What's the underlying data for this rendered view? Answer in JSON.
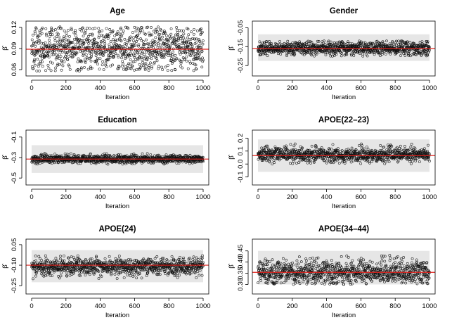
{
  "colors": {
    "reference_line": "#e0201b",
    "band": "#e6e6e6",
    "points": "#111111"
  },
  "chart_data": [
    {
      "type": "scatter",
      "title": "Age",
      "xlabel": "Iteration",
      "ylabel": "β̂",
      "xlim": [
        0,
        1000
      ],
      "ylim": [
        0.055,
        0.125
      ],
      "xticks": [
        0,
        200,
        400,
        600,
        800,
        1000
      ],
      "xtick_labels": [
        "0",
        "200",
        "400",
        "600",
        "800",
        "1000"
      ],
      "yticks": [
        0.06,
        0.09,
        0.12
      ],
      "ytick_labels": [
        "0.06",
        "0.09",
        "0.12"
      ],
      "reference_line": 0.089,
      "band": null,
      "samples": {
        "n": 1000,
        "center": 0.09,
        "spread": 0.016,
        "min": 0.058,
        "max": 0.121
      }
    },
    {
      "type": "scatter",
      "title": "Gender",
      "xlabel": "Iteration",
      "ylabel": "β̂",
      "xlim": [
        0,
        1000
      ],
      "ylim": [
        -0.29,
        -0.03
      ],
      "xticks": [
        0,
        200,
        400,
        600,
        800,
        1000
      ],
      "xtick_labels": [
        "0",
        "200",
        "400",
        "600",
        "800",
        "1000"
      ],
      "yticks": [
        -0.05,
        -0.15,
        -0.25
      ],
      "ytick_labels": [
        "-0.05",
        "-0.15",
        "-0.25"
      ],
      "reference_line": -0.16,
      "band": [
        -0.225,
        -0.085
      ],
      "samples": {
        "n": 1000,
        "center": -0.158,
        "spread": 0.018,
        "min": -0.2,
        "max": -0.12
      }
    },
    {
      "type": "scatter",
      "title": "Education",
      "xlabel": "Iteration",
      "ylabel": "β̂",
      "xlim": [
        0,
        1000
      ],
      "ylim": [
        -0.54,
        -0.06
      ],
      "xticks": [
        0,
        200,
        400,
        600,
        800,
        1000
      ],
      "xtick_labels": [
        "0",
        "200",
        "400",
        "600",
        "800",
        "1000"
      ],
      "yticks": [
        -0.1,
        -0.3,
        -0.5
      ],
      "ytick_labels": [
        "-0.1",
        "-0.3",
        "-0.5"
      ],
      "reference_line": -0.315,
      "band": [
        -0.45,
        -0.18
      ],
      "samples": {
        "n": 1000,
        "center": -0.315,
        "spread": 0.02,
        "min": -0.365,
        "max": -0.26
      }
    },
    {
      "type": "scatter",
      "title": "APOE(22–23)",
      "xlabel": "Iteration",
      "ylabel": "β̂",
      "xlim": [
        0,
        1000
      ],
      "ylim": [
        -0.14,
        0.24
      ],
      "xticks": [
        0,
        200,
        400,
        600,
        800,
        1000
      ],
      "xtick_labels": [
        "0",
        "200",
        "400",
        "600",
        "800",
        "1000"
      ],
      "yticks": [
        -0.1,
        0.0,
        0.1,
        0.2
      ],
      "ytick_labels": [
        "-0.1",
        "0.0",
        "0.1",
        "0.2"
      ],
      "reference_line": 0.065,
      "band": [
        -0.06,
        0.19
      ],
      "samples": {
        "n": 1000,
        "center": 0.072,
        "spread": 0.028,
        "min": 0.0,
        "max": 0.155
      }
    },
    {
      "type": "scatter",
      "title": "APOE(24)",
      "xlabel": "Iteration",
      "ylabel": "β̂",
      "xlim": [
        0,
        1000
      ],
      "ylim": [
        -0.29,
        0.07
      ],
      "xticks": [
        0,
        200,
        400,
        600,
        800,
        1000
      ],
      "xtick_labels": [
        "0",
        "200",
        "400",
        "600",
        "800",
        "1000"
      ],
      "yticks": [
        0.05,
        -0.1,
        -0.25
      ],
      "ytick_labels": [
        "0.05",
        "-0.10",
        "-0.25"
      ],
      "reference_line": -0.1,
      "band": [
        -0.225,
        0.01
      ],
      "samples": {
        "n": 1000,
        "center": -0.11,
        "spread": 0.032,
        "min": -0.2,
        "max": -0.03
      }
    },
    {
      "type": "scatter",
      "title": "APOE(34–44)",
      "xlabel": "Iteration",
      "ylabel": "β̂",
      "xlim": [
        0,
        1000
      ],
      "ylim": [
        0.27,
        0.49
      ],
      "xticks": [
        0,
        200,
        400,
        600,
        800,
        1000
      ],
      "xtick_labels": [
        "0",
        "200",
        "400",
        "600",
        "800",
        "1000"
      ],
      "yticks": [
        0.3,
        0.35,
        0.4,
        0.45
      ],
      "ytick_labels": [
        "0.30",
        "0.35",
        "0.40",
        "0.45"
      ],
      "reference_line": 0.354,
      "band": [
        0.3,
        0.45
      ],
      "samples": {
        "n": 1000,
        "center": 0.355,
        "spread": 0.028,
        "min": 0.3,
        "max": 0.43
      }
    }
  ]
}
